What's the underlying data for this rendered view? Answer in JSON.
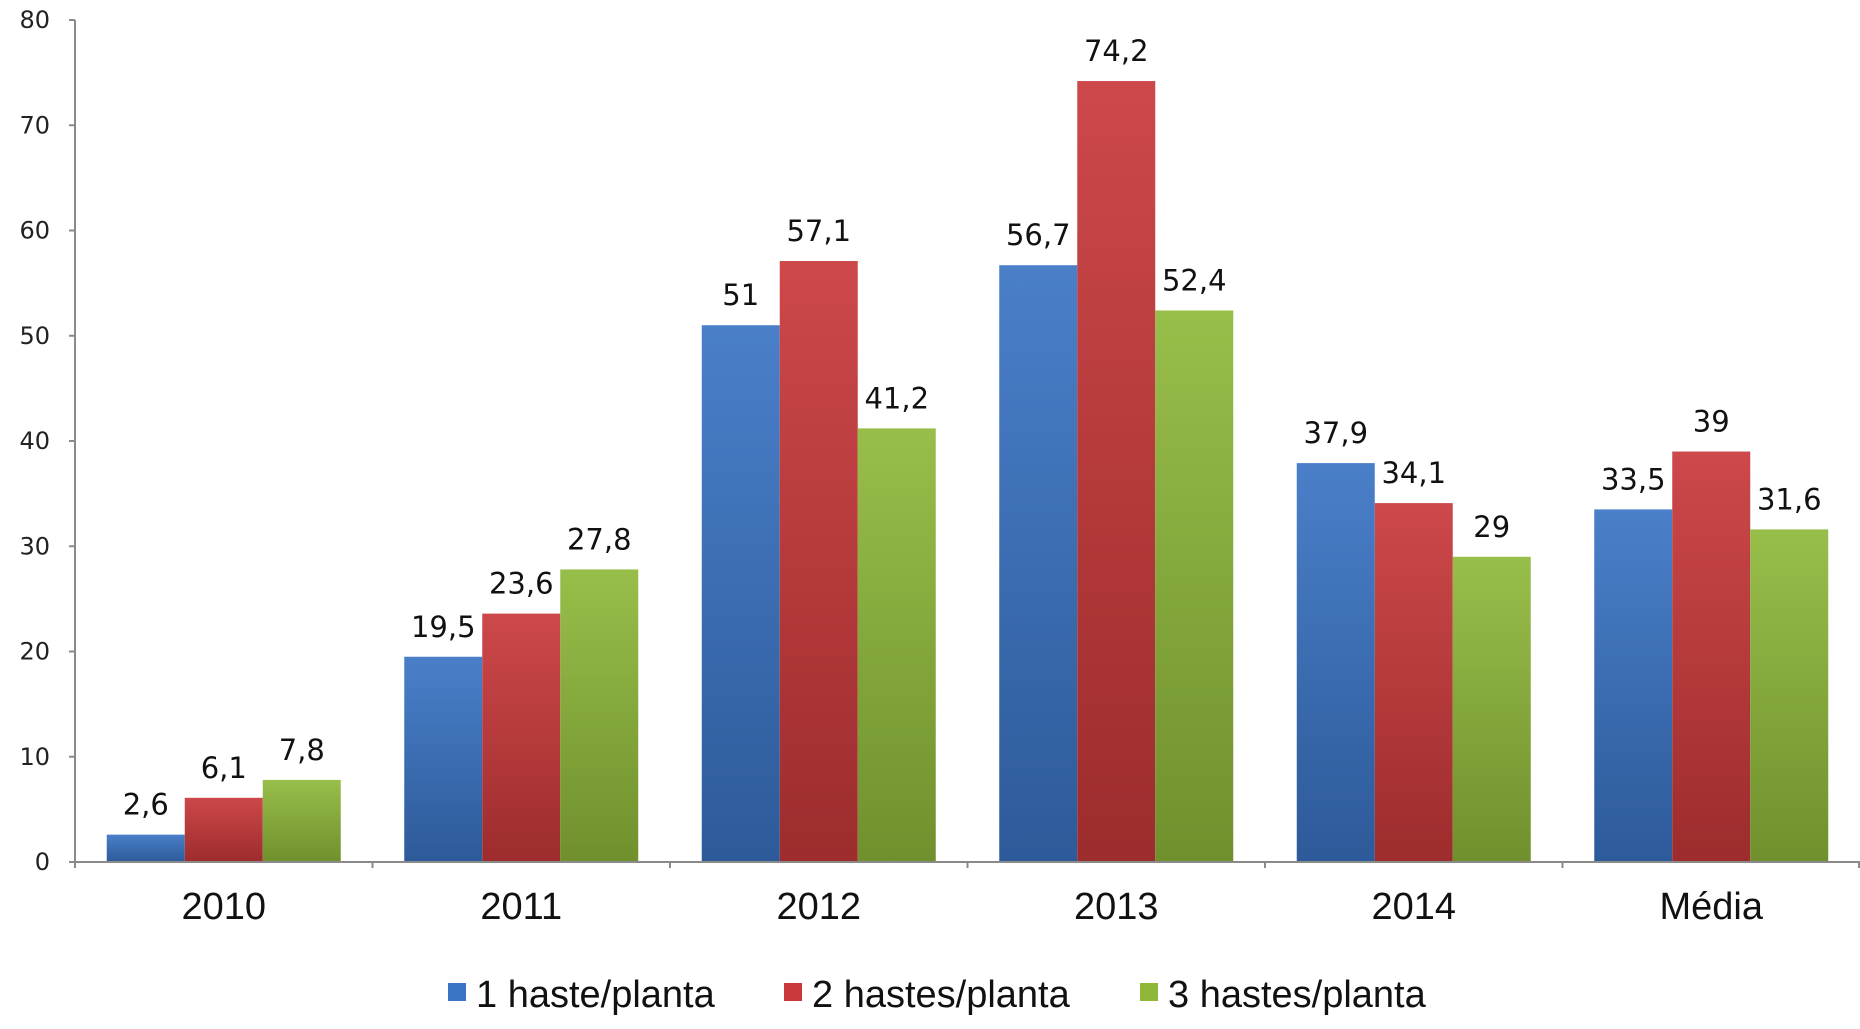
{
  "chart_data": {
    "type": "bar",
    "title": "",
    "xlabel": "",
    "ylabel": "",
    "ylim": [
      0,
      80
    ],
    "yticks": [
      "0",
      "10",
      "20",
      "30",
      "40",
      "50",
      "60",
      "70",
      "80"
    ],
    "categories": [
      "2010",
      "2011",
      "2012",
      "2013",
      "2014",
      "Média"
    ],
    "series": [
      {
        "name": "1 haste/planta",
        "color": "#3a74c4",
        "values": [
          2.6,
          19.5,
          51,
          56.7,
          37.9,
          33.5
        ],
        "labels": [
          "2,6",
          "19,5",
          "51",
          "56,7",
          "37,9",
          "33,5"
        ]
      },
      {
        "name": "2 hastes/planta",
        "color": "#c9383a",
        "values": [
          6.1,
          23.6,
          57.1,
          74.2,
          34.1,
          39
        ],
        "labels": [
          "6,1",
          "23,6",
          "57,1",
          "74,2",
          "34,1",
          "39"
        ]
      },
      {
        "name": "3 hastes/planta",
        "color": "#8fb83a",
        "values": [
          7.8,
          27.8,
          41.2,
          52.4,
          29,
          31.6
        ],
        "labels": [
          "7,8",
          "27,8",
          "41,2",
          "52,4",
          "29",
          "31,6"
        ]
      }
    ],
    "grid": false,
    "legend_position": "bottom"
  }
}
